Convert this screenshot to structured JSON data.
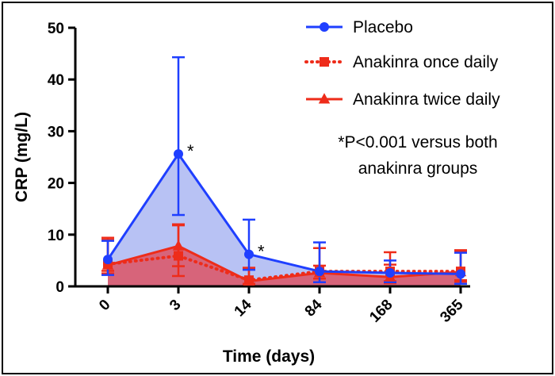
{
  "chart_data": {
    "type": "line",
    "xlabel": "Time (days)",
    "ylabel": "CRP (mg/L)",
    "categories": [
      "0",
      "3",
      "14",
      "84",
      "168",
      "365"
    ],
    "ylim": [
      0,
      50
    ],
    "yticks": [
      0,
      10,
      20,
      30,
      40,
      50
    ],
    "series": [
      {
        "name": "Placebo",
        "color": "#1f3fff",
        "fill": "#b8c2f4",
        "marker": "circle",
        "line_style": "solid",
        "values": [
          5.2,
          25.6,
          6.2,
          2.9,
          2.6,
          2.4
        ],
        "err_low": [
          2.2,
          13.8,
          3.2,
          0.8,
          0.8,
          0.5
        ],
        "err_high": [
          8.8,
          44.3,
          12.9,
          8.5,
          5.0,
          6.5
        ]
      },
      {
        "name": "Anakinra once daily",
        "color": "#ee2c1a",
        "marker": "square",
        "line_style": "dotted",
        "values": [
          4.3,
          5.9,
          1.2,
          2.9,
          2.9,
          2.9
        ],
        "err_low": [
          3.0,
          2.0,
          0.4,
          0.8,
          1.0,
          0.9
        ],
        "err_high": [
          9.4,
          11.8,
          3.6,
          7.4,
          6.6,
          7.0
        ]
      },
      {
        "name": "Anakinra twice daily",
        "color": "#ee2c1a",
        "fill": "#d7647a",
        "marker": "triangle",
        "line_style": "solid",
        "values": [
          4.1,
          7.8,
          1.0,
          2.6,
          1.8,
          2.8
        ],
        "err_low": [
          2.5,
          3.9,
          0.5,
          1.5,
          0.6,
          1.2
        ],
        "err_high": [
          9.0,
          12.0,
          3.3,
          4.0,
          4.2,
          6.8
        ]
      }
    ],
    "annotations": [
      {
        "text": "*",
        "category": "3"
      },
      {
        "text": "*",
        "category": "14"
      }
    ],
    "note_lines": [
      "*P<0.001 versus both",
      "anakinra groups"
    ],
    "legend_position": "top-right"
  }
}
